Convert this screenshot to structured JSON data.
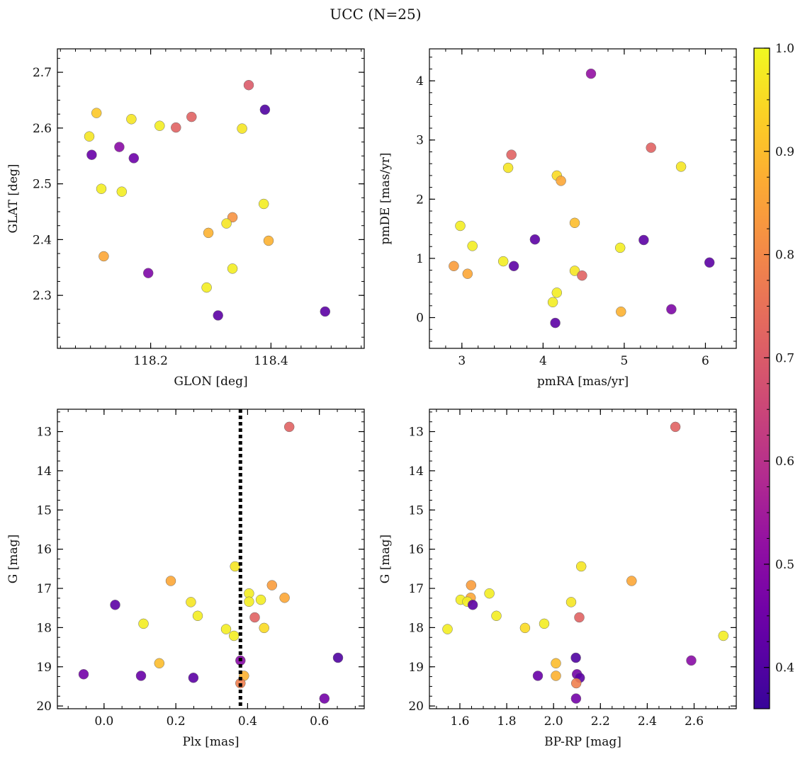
{
  "title": "UCC (N=25)",
  "colorbar": {
    "min": 0.36,
    "max": 1.0,
    "ticks": [
      0.4,
      0.5,
      0.6,
      0.7,
      0.8,
      0.9,
      1.0
    ],
    "tick_labels": [
      "0.4",
      "0.5",
      "0.6",
      "0.7",
      "0.8",
      "0.9",
      "1.0"
    ],
    "colormap": "plasma"
  },
  "chart_data": [
    {
      "type": "scatter",
      "xlabel": "GLON [deg]",
      "ylabel": "GLAT [deg]",
      "xlim": [
        118.045,
        118.555
      ],
      "ylim": [
        2.205,
        2.742
      ],
      "xticks": [
        118.2,
        118.4
      ],
      "xtick_labels": [
        "118.2",
        "118.4"
      ],
      "xminor": 0.025,
      "yticks": [
        2.3,
        2.4,
        2.5,
        2.6,
        2.7
      ],
      "ytick_labels": [
        "2.3",
        "2.4",
        "2.5",
        "2.6",
        "2.7"
      ],
      "yminor": 0.025,
      "points": [
        {
          "x": 118.363,
          "y": 2.677,
          "c": 0.7
        },
        {
          "x": 118.39,
          "y": 2.633,
          "c": 0.4
        },
        {
          "x": 118.11,
          "y": 2.627,
          "c": 0.92
        },
        {
          "x": 118.268,
          "y": 2.62,
          "c": 0.72
        },
        {
          "x": 118.168,
          "y": 2.616,
          "c": 0.97
        },
        {
          "x": 118.215,
          "y": 2.604,
          "c": 0.98
        },
        {
          "x": 118.242,
          "y": 2.601,
          "c": 0.72
        },
        {
          "x": 118.352,
          "y": 2.599,
          "c": 0.97
        },
        {
          "x": 118.098,
          "y": 2.585,
          "c": 0.97
        },
        {
          "x": 118.148,
          "y": 2.566,
          "c": 0.5
        },
        {
          "x": 118.102,
          "y": 2.552,
          "c": 0.44
        },
        {
          "x": 118.172,
          "y": 2.546,
          "c": 0.45
        },
        {
          "x": 118.118,
          "y": 2.491,
          "c": 0.98
        },
        {
          "x": 118.152,
          "y": 2.486,
          "c": 0.98
        },
        {
          "x": 118.388,
          "y": 2.464,
          "c": 0.98
        },
        {
          "x": 118.336,
          "y": 2.44,
          "c": 0.82
        },
        {
          "x": 118.326,
          "y": 2.429,
          "c": 0.97
        },
        {
          "x": 118.296,
          "y": 2.412,
          "c": 0.88
        },
        {
          "x": 118.396,
          "y": 2.398,
          "c": 0.88
        },
        {
          "x": 118.122,
          "y": 2.37,
          "c": 0.86
        },
        {
          "x": 118.336,
          "y": 2.348,
          "c": 0.98
        },
        {
          "x": 118.196,
          "y": 2.34,
          "c": 0.48
        },
        {
          "x": 118.293,
          "y": 2.314,
          "c": 0.98
        },
        {
          "x": 118.312,
          "y": 2.264,
          "c": 0.42
        },
        {
          "x": 118.49,
          "y": 2.271,
          "c": 0.42
        }
      ]
    },
    {
      "type": "scatter",
      "xlabel": "pmRA [mas/yr]",
      "ylabel": "pmDE [mas/yr]",
      "xlim": [
        2.6,
        6.38
      ],
      "ylim": [
        -0.52,
        4.54
      ],
      "xticks": [
        3,
        4,
        5,
        6
      ],
      "xtick_labels": [
        "3",
        "4",
        "5",
        "6"
      ],
      "xminor": 0.2,
      "yticks": [
        0,
        1,
        2,
        3,
        4
      ],
      "ytick_labels": [
        "0",
        "1",
        "2",
        "3",
        "4"
      ],
      "yminor": 0.2,
      "points": [
        {
          "x": 4.59,
          "y": 4.12,
          "c": 0.52
        },
        {
          "x": 5.33,
          "y": 2.87,
          "c": 0.72
        },
        {
          "x": 3.61,
          "y": 2.75,
          "c": 0.72
        },
        {
          "x": 5.7,
          "y": 2.55,
          "c": 0.97
        },
        {
          "x": 3.57,
          "y": 2.53,
          "c": 0.97
        },
        {
          "x": 4.17,
          "y": 2.4,
          "c": 0.95
        },
        {
          "x": 4.22,
          "y": 2.31,
          "c": 0.86
        },
        {
          "x": 4.39,
          "y": 1.6,
          "c": 0.9
        },
        {
          "x": 2.98,
          "y": 1.55,
          "c": 0.98
        },
        {
          "x": 3.9,
          "y": 1.32,
          "c": 0.42
        },
        {
          "x": 5.24,
          "y": 1.31,
          "c": 0.42
        },
        {
          "x": 3.13,
          "y": 1.21,
          "c": 0.98
        },
        {
          "x": 4.95,
          "y": 1.18,
          "c": 0.98
        },
        {
          "x": 3.51,
          "y": 0.95,
          "c": 0.98
        },
        {
          "x": 6.05,
          "y": 0.93,
          "c": 0.42
        },
        {
          "x": 2.9,
          "y": 0.87,
          "c": 0.84
        },
        {
          "x": 3.64,
          "y": 0.87,
          "c": 0.42
        },
        {
          "x": 4.39,
          "y": 0.79,
          "c": 0.97
        },
        {
          "x": 3.07,
          "y": 0.74,
          "c": 0.86
        },
        {
          "x": 4.48,
          "y": 0.71,
          "c": 0.72
        },
        {
          "x": 4.17,
          "y": 0.42,
          "c": 0.98
        },
        {
          "x": 4.12,
          "y": 0.26,
          "c": 0.98
        },
        {
          "x": 5.58,
          "y": 0.14,
          "c": 0.48
        },
        {
          "x": 4.96,
          "y": 0.1,
          "c": 0.88
        },
        {
          "x": 4.15,
          "y": -0.09,
          "c": 0.42
        }
      ]
    },
    {
      "type": "scatter",
      "xlabel": "Plx [mas]",
      "ylabel": "G [mag]",
      "xlim": [
        -0.13,
        0.725
      ],
      "ylim": [
        20.07,
        12.43
      ],
      "xticks": [
        0.0,
        0.2,
        0.4,
        0.6
      ],
      "xtick_labels": [
        "0.0",
        "0.2",
        "0.4",
        "0.6"
      ],
      "xminor": 0.05,
      "yticks": [
        13,
        14,
        15,
        16,
        17,
        18,
        19,
        20
      ],
      "ytick_labels": [
        "13",
        "14",
        "15",
        "16",
        "17",
        "18",
        "19",
        "20"
      ],
      "yminor": 0.25,
      "vline": {
        "x": 0.38,
        "style": "dotted",
        "color": "#000000"
      },
      "points": [
        {
          "x": 0.516,
          "y": 12.88,
          "c": 0.72
        },
        {
          "x": 0.365,
          "y": 16.44,
          "c": 0.97
        },
        {
          "x": 0.186,
          "y": 16.81,
          "c": 0.86
        },
        {
          "x": 0.468,
          "y": 16.92,
          "c": 0.84
        },
        {
          "x": 0.404,
          "y": 17.13,
          "c": 0.98
        },
        {
          "x": 0.503,
          "y": 17.24,
          "c": 0.86
        },
        {
          "x": 0.437,
          "y": 17.29,
          "c": 0.98
        },
        {
          "x": 0.404,
          "y": 17.34,
          "c": 0.98
        },
        {
          "x": 0.242,
          "y": 17.35,
          "c": 0.97
        },
        {
          "x": 0.031,
          "y": 17.42,
          "c": 0.42
        },
        {
          "x": 0.261,
          "y": 17.7,
          "c": 0.98
        },
        {
          "x": 0.42,
          "y": 17.74,
          "c": 0.72
        },
        {
          "x": 0.11,
          "y": 17.9,
          "c": 0.98
        },
        {
          "x": 0.446,
          "y": 18.01,
          "c": 0.95
        },
        {
          "x": 0.34,
          "y": 18.04,
          "c": 0.98
        },
        {
          "x": 0.362,
          "y": 18.21,
          "c": 0.98
        },
        {
          "x": 0.652,
          "y": 18.77,
          "c": 0.4
        },
        {
          "x": 0.38,
          "y": 18.84,
          "c": 0.5
        },
        {
          "x": 0.154,
          "y": 18.91,
          "c": 0.9
        },
        {
          "x": -0.057,
          "y": 19.19,
          "c": 0.46
        },
        {
          "x": 0.103,
          "y": 19.23,
          "c": 0.44
        },
        {
          "x": 0.39,
          "y": 19.23,
          "c": 0.88
        },
        {
          "x": 0.249,
          "y": 19.28,
          "c": 0.42
        },
        {
          "x": 0.38,
          "y": 19.42,
          "c": 0.78
        },
        {
          "x": 0.614,
          "y": 19.81,
          "c": 0.46
        }
      ]
    },
    {
      "type": "scatter",
      "xlabel": "BP-RP [mag]",
      "ylabel": "G [mag]",
      "xlim": [
        1.47,
        2.78
      ],
      "ylim": [
        20.07,
        12.43
      ],
      "xticks": [
        1.6,
        1.8,
        2.0,
        2.2,
        2.4,
        2.6
      ],
      "xtick_labels": [
        "1.6",
        "1.8",
        "2.0",
        "2.2",
        "2.4",
        "2.6"
      ],
      "xminor": 0.05,
      "yticks": [
        13,
        14,
        15,
        16,
        17,
        18,
        19,
        20
      ],
      "ytick_labels": [
        "13",
        "14",
        "15",
        "16",
        "17",
        "18",
        "19",
        "20"
      ],
      "yminor": 0.25,
      "points": [
        {
          "x": 2.52,
          "y": 12.88,
          "c": 0.72
        },
        {
          "x": 2.118,
          "y": 16.44,
          "c": 0.97
        },
        {
          "x": 2.333,
          "y": 16.81,
          "c": 0.86
        },
        {
          "x": 1.648,
          "y": 16.92,
          "c": 0.84
        },
        {
          "x": 1.726,
          "y": 17.13,
          "c": 0.98
        },
        {
          "x": 1.646,
          "y": 17.24,
          "c": 0.86
        },
        {
          "x": 1.603,
          "y": 17.29,
          "c": 0.98
        },
        {
          "x": 1.632,
          "y": 17.34,
          "c": 0.98
        },
        {
          "x": 2.075,
          "y": 17.35,
          "c": 0.97
        },
        {
          "x": 1.655,
          "y": 17.42,
          "c": 0.42
        },
        {
          "x": 1.756,
          "y": 17.7,
          "c": 0.98
        },
        {
          "x": 2.11,
          "y": 17.74,
          "c": 0.72
        },
        {
          "x": 1.96,
          "y": 17.9,
          "c": 0.98
        },
        {
          "x": 1.878,
          "y": 18.01,
          "c": 0.95
        },
        {
          "x": 1.547,
          "y": 18.04,
          "c": 0.98
        },
        {
          "x": 2.725,
          "y": 18.21,
          "c": 0.98
        },
        {
          "x": 2.095,
          "y": 18.77,
          "c": 0.4
        },
        {
          "x": 2.588,
          "y": 18.84,
          "c": 0.5
        },
        {
          "x": 2.01,
          "y": 18.91,
          "c": 0.9
        },
        {
          "x": 2.1,
          "y": 19.19,
          "c": 0.46
        },
        {
          "x": 1.933,
          "y": 19.23,
          "c": 0.44
        },
        {
          "x": 2.01,
          "y": 19.23,
          "c": 0.88
        },
        {
          "x": 2.112,
          "y": 19.28,
          "c": 0.42
        },
        {
          "x": 2.097,
          "y": 19.42,
          "c": 0.78
        },
        {
          "x": 2.096,
          "y": 19.81,
          "c": 0.46
        }
      ]
    }
  ]
}
